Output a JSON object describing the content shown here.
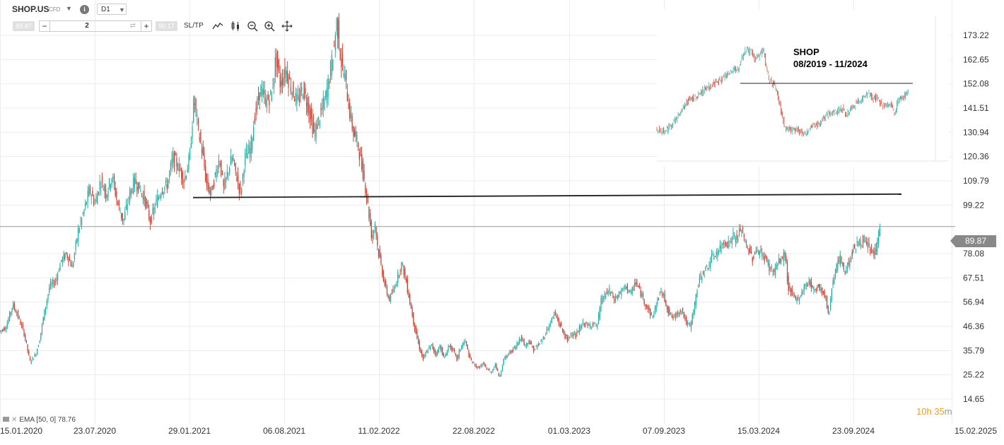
{
  "toolbar": {
    "symbol": "SHOP.US",
    "instrument_type": "CFD",
    "timeframe": "D1",
    "bid": "89.87",
    "ask": "90.17",
    "quantity": "2",
    "minus_label": "−",
    "plus_label": "+",
    "sltp_label": "SL/TP",
    "info_label": "i"
  },
  "indicator": {
    "label": "EMA [50, 0] 78.76"
  },
  "timer": {
    "hours": "10",
    "h_unit": "h",
    "minutes": "35",
    "m_unit": "m"
  },
  "chart_data": [
    {
      "type": "candlestick",
      "title": "",
      "last_price": 89.87,
      "last_price_label": "89.87",
      "ylim": [
        14.65,
        183.8
      ],
      "y_ticks": [
        "173.22",
        "162.65",
        "152.08",
        "141.51",
        "130.94",
        "120.36",
        "109.79",
        "99.22",
        "89.87",
        "78.08",
        "67.51",
        "56.94",
        "46.36",
        "35.79",
        "25.22",
        "14.65"
      ],
      "x_ticks": [
        "15.01.2020",
        "23.07.2020",
        "29.01.2021",
        "06.08.2021",
        "11.02.2022",
        "22.08.2022",
        "01.03.2023",
        "07.09.2023",
        "15.03.2024",
        "23.09.2024",
        "15.02.2025"
      ],
      "up_color": "#26a69a",
      "down_color": "#c0392b",
      "path_points": [
        [
          0,
          44
        ],
        [
          10,
          46
        ],
        [
          20,
          56
        ],
        [
          28,
          50
        ],
        [
          36,
          43
        ],
        [
          44,
          31
        ],
        [
          52,
          34
        ],
        [
          58,
          41
        ],
        [
          64,
          52
        ],
        [
          72,
          64
        ],
        [
          80,
          66
        ],
        [
          88,
          75
        ],
        [
          96,
          78
        ],
        [
          104,
          72
        ],
        [
          112,
          88
        ],
        [
          120,
          96
        ],
        [
          128,
          106
        ],
        [
          136,
          100
        ],
        [
          144,
          110
        ],
        [
          152,
          104
        ],
        [
          160,
          112
        ],
        [
          168,
          100
        ],
        [
          176,
          92
        ],
        [
          184,
          103
        ],
        [
          192,
          110
        ],
        [
          200,
          106
        ],
        [
          208,
          100
        ],
        [
          214,
          92
        ],
        [
          222,
          100
        ],
        [
          230,
          106
        ],
        [
          238,
          108
        ],
        [
          246,
          120
        ],
        [
          254,
          116
        ],
        [
          262,
          110
        ],
        [
          270,
          120
        ],
        [
          276,
          146
        ],
        [
          282,
          132
        ],
        [
          288,
          122
        ],
        [
          294,
          108
        ],
        [
          300,
          104
        ],
        [
          306,
          112
        ],
        [
          312,
          120
        ],
        [
          318,
          106
        ],
        [
          324,
          114
        ],
        [
          330,
          120
        ],
        [
          336,
          112
        ],
        [
          342,
          104
        ],
        [
          348,
          120
        ],
        [
          356,
          124
        ],
        [
          362,
          138
        ],
        [
          370,
          150
        ],
        [
          378,
          144
        ],
        [
          386,
          148
        ],
        [
          392,
          164
        ],
        [
          398,
          152
        ],
        [
          406,
          158
        ],
        [
          414,
          150
        ],
        [
          422,
          144
        ],
        [
          430,
          150
        ],
        [
          438,
          142
        ],
        [
          446,
          130
        ],
        [
          454,
          138
        ],
        [
          462,
          146
        ],
        [
          468,
          156
        ],
        [
          474,
          168
        ],
        [
          478,
          180
        ],
        [
          484,
          162
        ],
        [
          490,
          154
        ],
        [
          496,
          140
        ],
        [
          502,
          130
        ],
        [
          508,
          126
        ],
        [
          512,
          118
        ],
        [
          516,
          112
        ],
        [
          520,
          104
        ],
        [
          524,
          94
        ],
        [
          528,
          84
        ],
        [
          532,
          92
        ],
        [
          536,
          80
        ],
        [
          540,
          74
        ],
        [
          546,
          64
        ],
        [
          552,
          58
        ],
        [
          558,
          62
        ],
        [
          564,
          68
        ],
        [
          570,
          74
        ],
        [
          576,
          66
        ],
        [
          582,
          56
        ],
        [
          588,
          46
        ],
        [
          594,
          38
        ],
        [
          600,
          32
        ],
        [
          606,
          36
        ],
        [
          612,
          38
        ],
        [
          618,
          34
        ],
        [
          624,
          38
        ],
        [
          630,
          32
        ],
        [
          636,
          38
        ],
        [
          642,
          36
        ],
        [
          648,
          32
        ],
        [
          654,
          38
        ],
        [
          660,
          40
        ],
        [
          666,
          32
        ],
        [
          672,
          30
        ],
        [
          678,
          28
        ],
        [
          684,
          30
        ],
        [
          690,
          28
        ],
        [
          696,
          26
        ],
        [
          702,
          30
        ],
        [
          708,
          24
        ],
        [
          714,
          32
        ],
        [
          720,
          34
        ],
        [
          726,
          36
        ],
        [
          732,
          38
        ],
        [
          738,
          42
        ],
        [
          744,
          38
        ],
        [
          750,
          40
        ],
        [
          756,
          36
        ],
        [
          762,
          38
        ],
        [
          768,
          40
        ],
        [
          774,
          44
        ],
        [
          780,
          48
        ],
        [
          786,
          52
        ],
        [
          792,
          48
        ],
        [
          798,
          44
        ],
        [
          804,
          40
        ],
        [
          810,
          44
        ],
        [
          816,
          42
        ],
        [
          822,
          46
        ],
        [
          828,
          48
        ],
        [
          834,
          46
        ],
        [
          840,
          48
        ],
        [
          846,
          46
        ],
        [
          852,
          58
        ],
        [
          858,
          60
        ],
        [
          864,
          62
        ],
        [
          870,
          58
        ],
        [
          876,
          60
        ],
        [
          882,
          62
        ],
        [
          888,
          64
        ],
        [
          894,
          60
        ],
        [
          900,
          66
        ],
        [
          906,
          62
        ],
        [
          912,
          58
        ],
        [
          918,
          54
        ],
        [
          924,
          50
        ],
        [
          930,
          56
        ],
        [
          936,
          62
        ],
        [
          942,
          58
        ],
        [
          948,
          52
        ],
        [
          954,
          50
        ],
        [
          960,
          52
        ],
        [
          966,
          54
        ],
        [
          972,
          48
        ],
        [
          978,
          46
        ],
        [
          984,
          56
        ],
        [
          990,
          66
        ],
        [
          996,
          70
        ],
        [
          1002,
          72
        ],
        [
          1008,
          76
        ],
        [
          1014,
          78
        ],
        [
          1020,
          80
        ],
        [
          1026,
          84
        ],
        [
          1032,
          82
        ],
        [
          1038,
          86
        ],
        [
          1044,
          84
        ],
        [
          1050,
          90
        ],
        [
          1054,
          84
        ],
        [
          1060,
          80
        ],
        [
          1066,
          76
        ],
        [
          1072,
          80
        ],
        [
          1078,
          78
        ],
        [
          1084,
          76
        ],
        [
          1090,
          72
        ],
        [
          1096,
          70
        ],
        [
          1102,
          74
        ],
        [
          1108,
          76
        ],
        [
          1112,
          78
        ],
        [
          1116,
          64
        ],
        [
          1122,
          60
        ],
        [
          1128,
          58
        ],
        [
          1134,
          60
        ],
        [
          1140,
          64
        ],
        [
          1146,
          66
        ],
        [
          1152,
          62
        ],
        [
          1158,
          64
        ],
        [
          1164,
          62
        ],
        [
          1170,
          58
        ],
        [
          1174,
          50
        ],
        [
          1178,
          64
        ],
        [
          1184,
          72
        ],
        [
          1190,
          76
        ],
        [
          1196,
          70
        ],
        [
          1202,
          74
        ],
        [
          1208,
          80
        ],
        [
          1214,
          82
        ],
        [
          1220,
          84
        ],
        [
          1226,
          82
        ],
        [
          1232,
          80
        ],
        [
          1238,
          78
        ],
        [
          1242,
          82
        ],
        [
          1246,
          90
        ]
      ],
      "support_line": {
        "y_start": 102.5,
        "y_end": 104.0,
        "x_start_date": "29.01.2021",
        "x_end_date": "23.09.2024"
      }
    },
    {
      "type": "candlestick",
      "inset": true,
      "title_line1": "SHOP",
      "title_line2": "08/2019 - 11/2024",
      "up_color": "#26a69a",
      "down_color": "#c0392b"
    }
  ]
}
